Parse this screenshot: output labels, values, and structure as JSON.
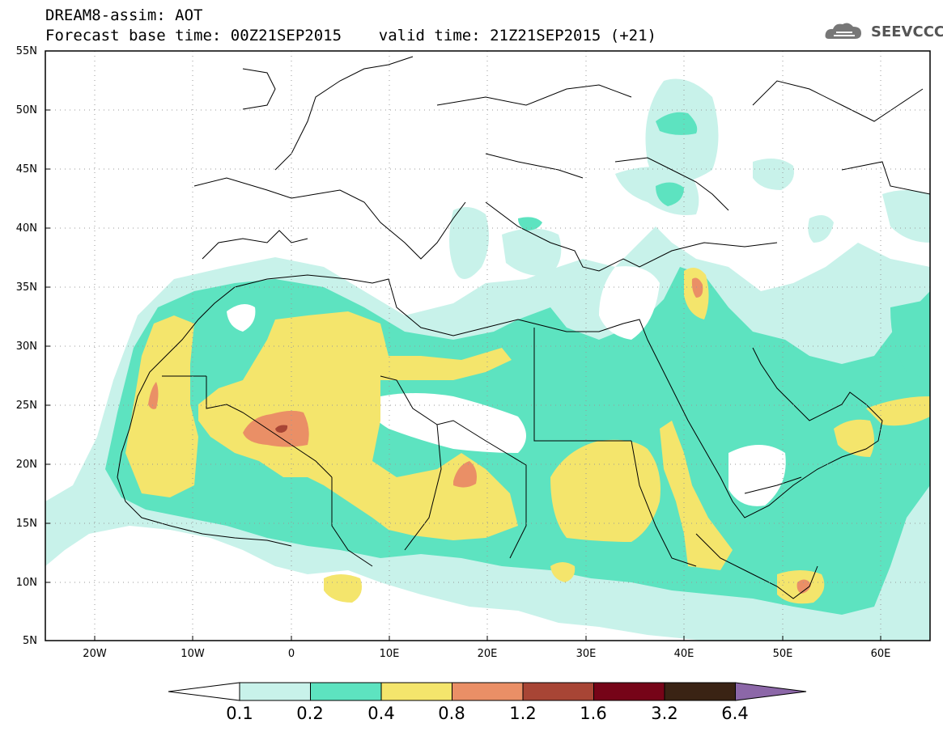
{
  "header": {
    "title_line1": "DREAM8-assim: AOT",
    "title_line2": "Forecast base time: 00Z21SEP2015    valid time: 21Z21SEP2015 (+21)",
    "logo_text": "SEEVCCC"
  },
  "map": {
    "lat_labels": [
      "55N",
      "50N",
      "45N",
      "40N",
      "35N",
      "30N",
      "25N",
      "20N",
      "15N",
      "10N",
      "5N"
    ],
    "lon_labels": [
      "20W",
      "10W",
      "0",
      "10E",
      "20E",
      "30E",
      "40E",
      "50E",
      "60E"
    ]
  },
  "colorbar": {
    "labels": [
      "0.1",
      "0.2",
      "0.4",
      "0.8",
      "1.2",
      "1.6",
      "3.2",
      "6.4"
    ],
    "colors": [
      "#ffffff",
      "#c8f2ea",
      "#5de3c0",
      "#f4e56c",
      "#ea8f66",
      "#a84535",
      "#760418",
      "#3a2314",
      "#8c67a8"
    ]
  },
  "field_colors": {
    "c01": "#c8f2ea",
    "c02": "#5de3c0",
    "c04": "#f4e56c",
    "c08": "#ea8f66",
    "c12": "#a84535"
  }
}
